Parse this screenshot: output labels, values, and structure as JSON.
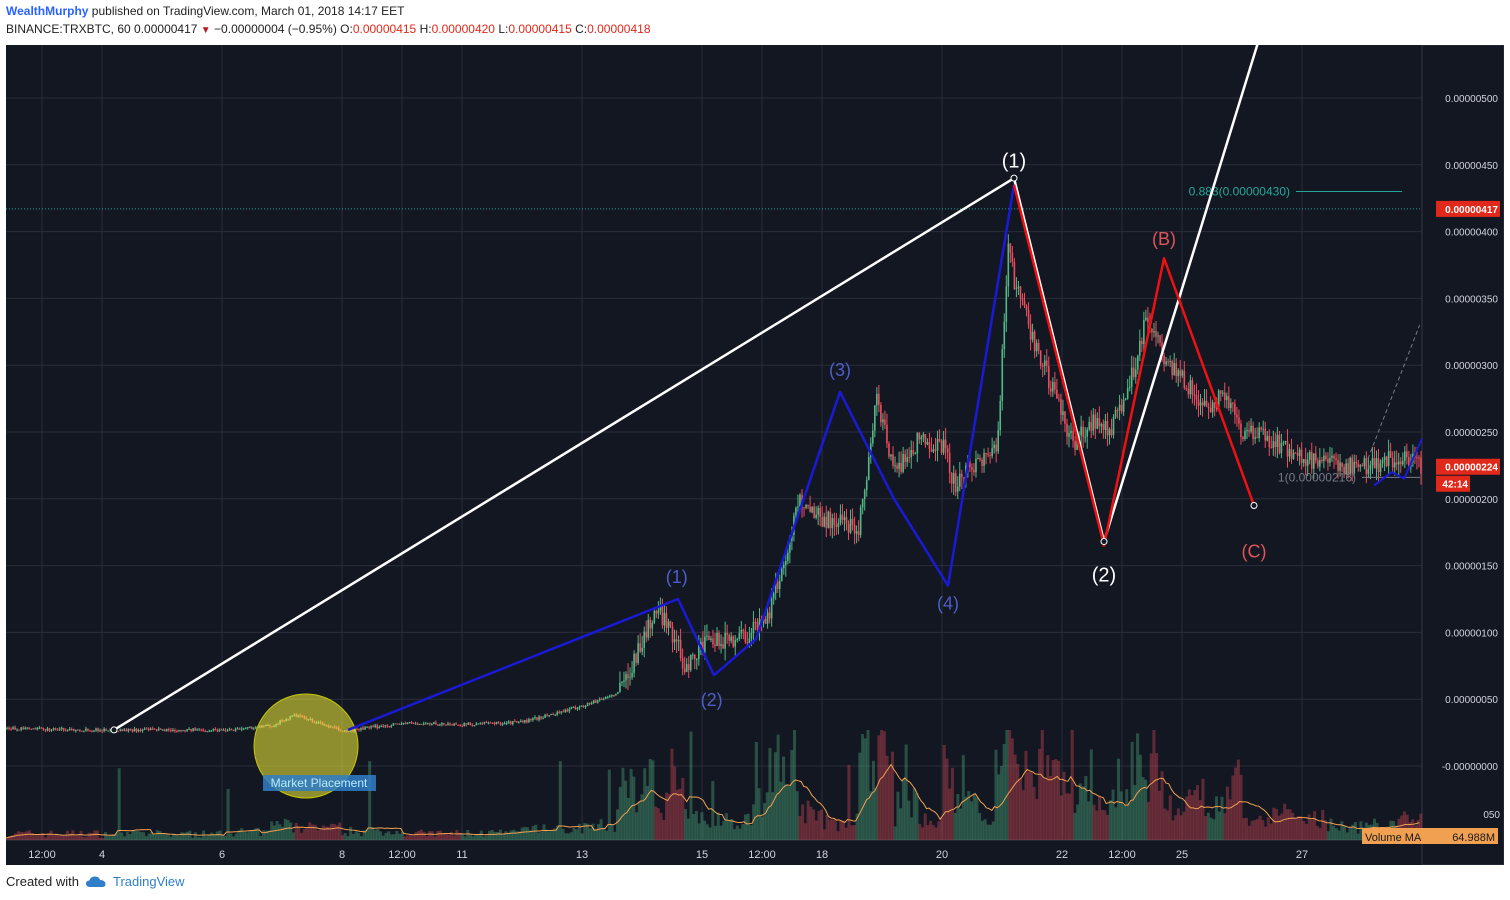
{
  "header": {
    "author": "WealthMurphy",
    "published_text": "published on TradingView.com, March 01, 2018 14:17 EET"
  },
  "quote": {
    "symbol": "BINANCE:TRXBTC, 60",
    "last": "0.00000417",
    "change": "−0.00000004 (−0.95%)",
    "open_label": "O:",
    "open": "0.00000415",
    "high_label": "H:",
    "high": "0.00000420",
    "low_label": "L:",
    "low": "0.00000415",
    "close_label": "C:",
    "close": "0.00000418"
  },
  "footer": {
    "created_with": "Created with",
    "brand": "TradingView"
  },
  "colors": {
    "background": "#131722",
    "grid": "#2a2e39",
    "axis_text": "#d1d4dc",
    "up_candle": "#53b987",
    "down_candle": "#eb4d5c",
    "blue_wave": "#1a1ad6",
    "blue_label": "#4d5ec7",
    "red_wave": "#ee1111",
    "red_label": "#e0555a",
    "white_line": "#ffffff",
    "fib": "#26a69a",
    "price_tag": "#e0291a",
    "volume_ma": "#f0a050",
    "highlight_circle": "#f5f03a"
  },
  "chart_data": {
    "type": "candlestick",
    "symbol": "BINANCE:TRXBTC",
    "interval": "60",
    "x_ticks": [
      "12:00",
      "4",
      "6",
      "8",
      "12:00",
      "11",
      "13",
      "15",
      "12:00",
      "18",
      "20",
      "22",
      "12:00",
      "25",
      "27"
    ],
    "x_tick_days": [
      3.5,
      4,
      5,
      6,
      6.5,
      7,
      8,
      9,
      9.5,
      10,
      11,
      12,
      12.5,
      13,
      14
    ],
    "x_range": [
      3.2,
      15.0
    ],
    "y_ticks": [
      "0.00000500",
      "0.00000450",
      "0.00000400",
      "0.00000350",
      "0.00000300",
      "0.00000250",
      "0.00000200",
      "0.00000150",
      "0.00000100",
      "0.00000050",
      "-0.00000000"
    ],
    "y_tick_values": [
      5e-06,
      4.5e-06,
      4e-06,
      3.5e-06,
      3e-06,
      2.5e-06,
      2e-06,
      1.5e-06,
      1e-06,
      5e-07,
      0
    ],
    "y_range": [
      -5e-07,
      5.5e-06
    ],
    "price_path": [
      [
        3.2,
        0.28
      ],
      [
        4.0,
        0.27
      ],
      [
        5.0,
        0.27
      ],
      [
        5.4,
        0.3
      ],
      [
        5.6,
        0.38
      ],
      [
        5.8,
        0.32
      ],
      [
        6.0,
        0.26
      ],
      [
        6.5,
        0.32
      ],
      [
        7.0,
        0.31
      ],
      [
        7.5,
        0.33
      ],
      [
        8.0,
        0.45
      ],
      [
        8.3,
        0.55
      ],
      [
        8.5,
        0.95
      ],
      [
        8.6,
        1.15
      ],
      [
        8.7,
        1.1
      ],
      [
        8.85,
        0.75
      ],
      [
        9.0,
        0.9
      ],
      [
        9.2,
        0.95
      ],
      [
        9.4,
        1.0
      ],
      [
        9.55,
        1.15
      ],
      [
        9.7,
        1.6
      ],
      [
        9.8,
        2.0
      ],
      [
        10.0,
        1.85
      ],
      [
        10.3,
        1.8
      ],
      [
        10.45,
        2.75
      ],
      [
        10.6,
        2.2
      ],
      [
        10.8,
        2.45
      ],
      [
        11.0,
        2.4
      ],
      [
        11.1,
        2.1
      ],
      [
        11.3,
        2.3
      ],
      [
        11.45,
        2.35
      ],
      [
        11.55,
        4.0
      ],
      [
        11.6,
        3.6
      ],
      [
        11.75,
        3.2
      ],
      [
        12.0,
        2.6
      ],
      [
        12.1,
        2.4
      ],
      [
        12.25,
        2.6
      ],
      [
        12.4,
        2.5
      ],
      [
        12.6,
        3.0
      ],
      [
        12.7,
        3.4
      ],
      [
        12.85,
        3.0
      ],
      [
        13.0,
        2.9
      ],
      [
        13.2,
        2.65
      ],
      [
        13.35,
        2.8
      ],
      [
        13.5,
        2.5
      ],
      [
        13.7,
        2.45
      ],
      [
        14.0,
        2.3
      ],
      [
        14.2,
        2.25
      ],
      [
        14.5,
        2.25
      ],
      [
        14.8,
        2.3
      ],
      [
        15.0,
        2.24
      ]
    ],
    "volume_ma_label": "Volume MA",
    "volume_ma_value": "64.988M",
    "volume_axis_tick": "050",
    "blue_wave": {
      "points": [
        [
          6.05,
          0.27
        ],
        [
          8.8,
          1.25
        ],
        [
          9.1,
          0.68
        ],
        [
          9.45,
          0.95
        ],
        [
          10.15,
          2.8
        ],
        [
          10.6,
          2.0
        ],
        [
          11.05,
          1.35
        ],
        [
          11.6,
          4.35
        ]
      ],
      "labels": [
        "(1)",
        "(2)",
        "(3)",
        "(4)"
      ]
    },
    "red_wave": {
      "points": [
        [
          11.6,
          4.35
        ],
        [
          12.35,
          1.65
        ],
        [
          12.85,
          3.8
        ],
        [
          13.6,
          1.95
        ]
      ],
      "labels": [
        "(B)",
        "(C)"
      ]
    },
    "white_line": {
      "points": [
        [
          4.1,
          0.27
        ],
        [
          11.6,
          4.4
        ],
        [
          12.35,
          1.68
        ],
        [
          13.8,
          5.9
        ]
      ],
      "labels": [
        "(1)",
        "(2)"
      ]
    },
    "fib": {
      "label": "0.883(0.00000430)",
      "value": 4.3e-06,
      "base_label": "1(0.00000216)",
      "base_value": 2.16e-06
    },
    "last_price": {
      "label": "0.00000417",
      "value": 4.17e-06
    },
    "current_price": {
      "label": "0.00000224",
      "value": 2.24e-06,
      "timer": "42:14"
    },
    "annotation": {
      "label": "Market Placement",
      "day": 5.7,
      "price": 3.3e-07
    }
  }
}
